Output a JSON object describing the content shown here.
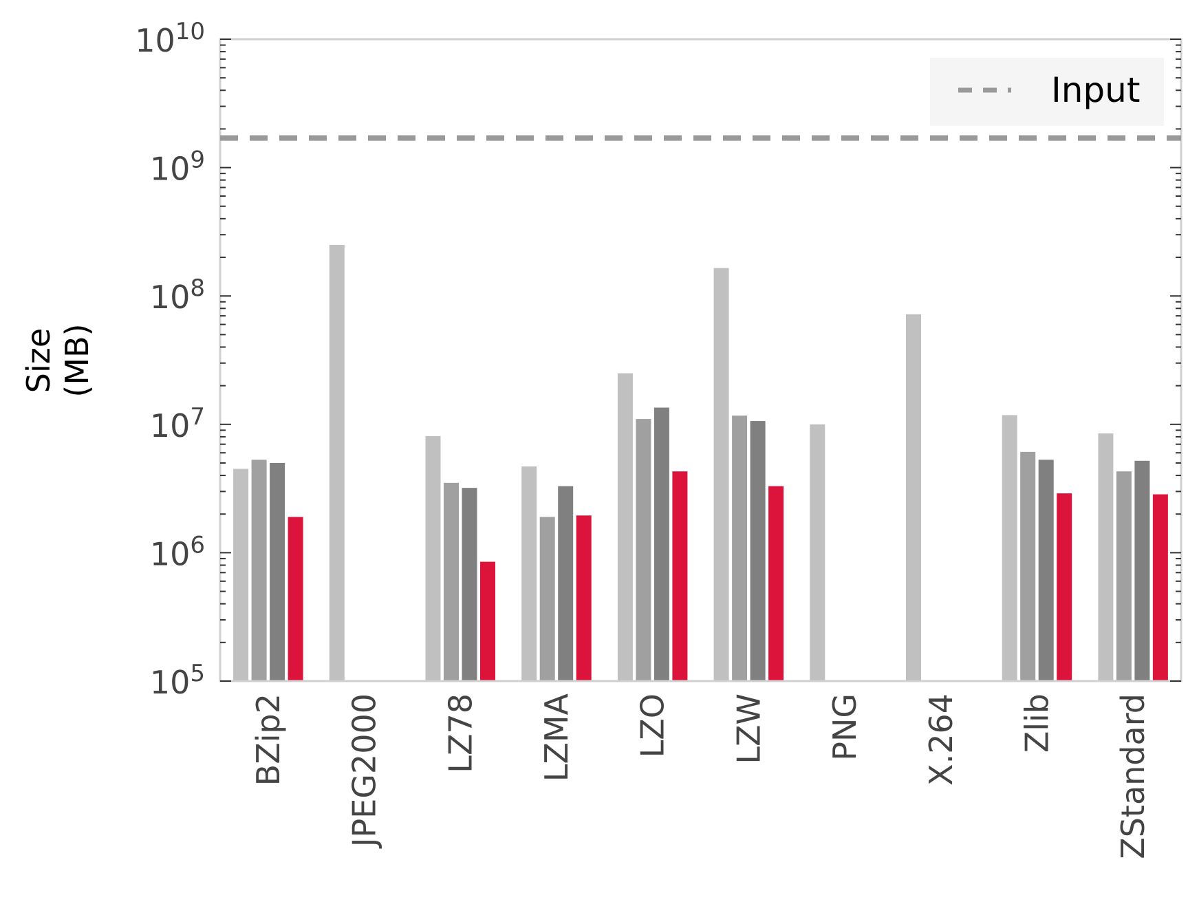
{
  "chart_data": {
    "type": "bar",
    "scale": "log",
    "ylabel_line1": "Size",
    "ylabel_line2": "(MB)",
    "ylim": [
      100000,
      10000000000
    ],
    "yticks": [
      {
        "value": 100000,
        "base": "10",
        "exp": "5"
      },
      {
        "value": 1000000,
        "base": "10",
        "exp": "6"
      },
      {
        "value": 10000000,
        "base": "10",
        "exp": "7"
      },
      {
        "value": 100000000,
        "base": "10",
        "exp": "8"
      },
      {
        "value": 1000000000,
        "base": "10",
        "exp": "9"
      },
      {
        "value": 10000000000,
        "base": "10",
        "exp": "10"
      }
    ],
    "categories": [
      "BZip2",
      "JPEG2000",
      "LZ78",
      "LZMA",
      "LZO",
      "LZW",
      "PNG",
      "X.264",
      "Zlib",
      "ZStandard"
    ],
    "series_colors": [
      "#c0c0c0",
      "#a0a0a0",
      "#808080",
      "#dc143c"
    ],
    "values": [
      [
        4500000,
        5300000,
        5000000,
        1900000
      ],
      [
        250000000,
        null,
        null,
        null
      ],
      [
        8100000,
        3500000,
        3200000,
        850000
      ],
      [
        4700000,
        1900000,
        3300000,
        1950000
      ],
      [
        25000000,
        11000000,
        13500000,
        4300000
      ],
      [
        165000000,
        11700000,
        10600000,
        3300000
      ],
      [
        10000000,
        null,
        null,
        null
      ],
      [
        72000000,
        null,
        null,
        null
      ],
      [
        11800000,
        6100000,
        5300000,
        2900000
      ],
      [
        8500000,
        4300000,
        5200000,
        2850000
      ]
    ],
    "reference_line": {
      "label": "Input",
      "value": 1700000000,
      "color": "#999999",
      "style": "dashed"
    },
    "legend_position": "top-right",
    "grid": false
  }
}
